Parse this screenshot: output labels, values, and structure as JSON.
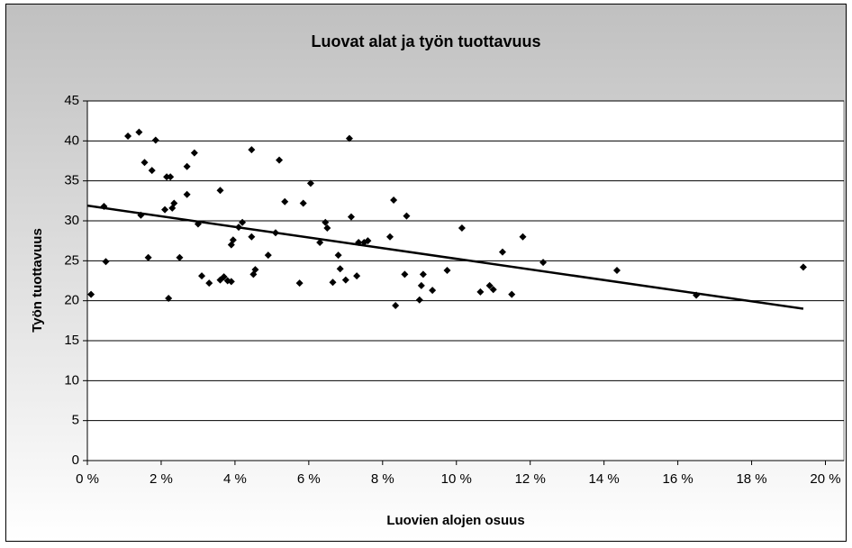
{
  "chart_data": {
    "type": "scatter",
    "title": "Luovat alat ja työn tuottavuus",
    "x_label": "Luovien alojen osuus",
    "y_label": "Työn tuottavuus",
    "xlim": [
      0,
      20.5
    ],
    "ylim": [
      0,
      45
    ],
    "xticks": [
      {
        "value": 0,
        "label": "0 %"
      },
      {
        "value": 2,
        "label": "2 %"
      },
      {
        "value": 4,
        "label": "4 %"
      },
      {
        "value": 6,
        "label": "6 %"
      },
      {
        "value": 8,
        "label": "8 %"
      },
      {
        "value": 10,
        "label": "10 %"
      },
      {
        "value": 12,
        "label": "12 %"
      },
      {
        "value": 14,
        "label": "14 %"
      },
      {
        "value": 16,
        "label": "16 %"
      },
      {
        "value": 18,
        "label": "18 %"
      },
      {
        "value": 20,
        "label": "20 %"
      }
    ],
    "yticks": [
      0,
      5,
      10,
      15,
      20,
      25,
      30,
      35,
      40,
      45
    ],
    "grid": true,
    "color": "#000000",
    "x": [
      0.1,
      0.45,
      0.5,
      1.1,
      1.4,
      1.45,
      1.55,
      1.65,
      1.75,
      1.85,
      2.1,
      2.15,
      2.25,
      2.2,
      2.3,
      2.35,
      2.5,
      2.7,
      2.7,
      2.9,
      3.0,
      3.1,
      3.3,
      3.6,
      3.6,
      3.7,
      3.8,
      3.9,
      3.9,
      3.95,
      4.1,
      4.2,
      4.45,
      4.45,
      4.5,
      4.55,
      4.9,
      5.1,
      5.2,
      5.35,
      5.75,
      5.85,
      6.05,
      6.3,
      6.45,
      6.5,
      6.65,
      6.8,
      6.85,
      7.0,
      7.1,
      7.15,
      7.3,
      7.35,
      7.5,
      7.6,
      8.2,
      8.3,
      8.35,
      8.6,
      8.65,
      9.0,
      9.05,
      9.1,
      9.35,
      9.75,
      10.15,
      10.65,
      10.9,
      11.0,
      11.25,
      11.5,
      11.8,
      12.35,
      14.35,
      16.5,
      19.4
    ],
    "values": [
      20.8,
      31.8,
      24.9,
      40.6,
      41.1,
      30.7,
      37.3,
      25.4,
      36.3,
      40.1,
      31.4,
      35.5,
      35.5,
      20.3,
      31.6,
      32.2,
      25.4,
      36.8,
      33.3,
      38.5,
      29.6,
      23.1,
      22.2,
      33.8,
      22.6,
      23.0,
      22.5,
      22.4,
      27.0,
      27.6,
      29.2,
      29.8,
      28.0,
      38.9,
      23.3,
      23.9,
      25.7,
      28.5,
      37.6,
      32.4,
      22.2,
      32.2,
      34.7,
      27.3,
      29.8,
      29.1,
      22.3,
      25.7,
      24.0,
      22.6,
      40.3,
      30.5,
      23.1,
      27.3,
      27.3,
      27.5,
      28.0,
      32.6,
      19.4,
      23.3,
      30.6,
      20.1,
      21.9,
      23.3,
      21.3,
      23.8,
      29.1,
      21.1,
      21.9,
      21.4,
      26.1,
      20.8,
      28.0,
      24.8,
      23.8,
      20.7,
      24.2
    ],
    "trendline": {
      "x": [
        0,
        19.4
      ],
      "values": [
        31.9,
        19.0
      ],
      "color": "#000000"
    }
  }
}
